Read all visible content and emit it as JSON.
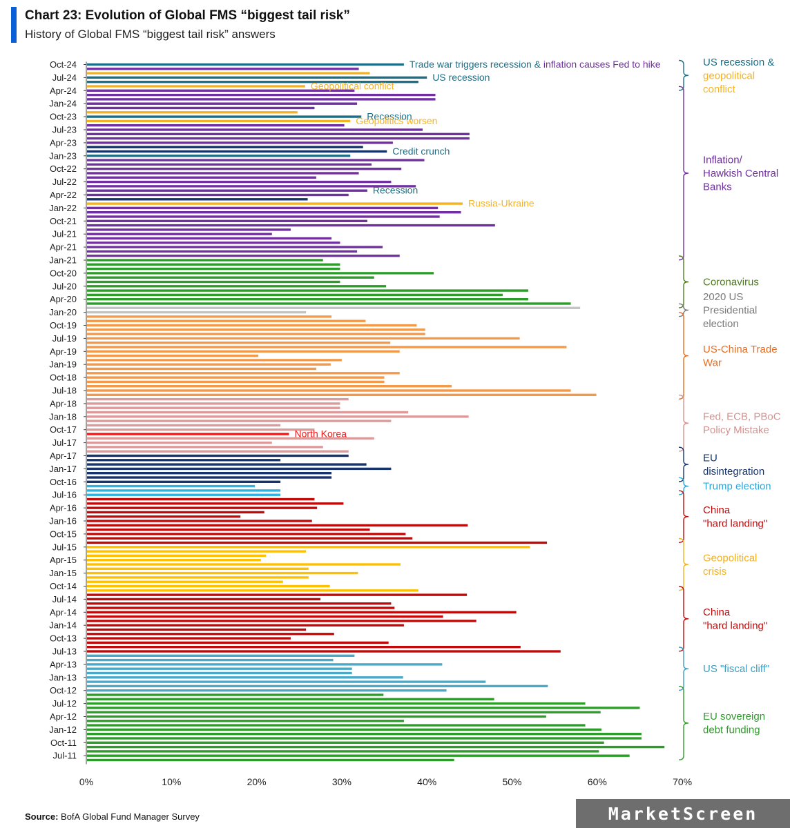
{
  "title": "Chart 23: Evolution of Global FMS “biggest tail risk”",
  "subtitle": "History of Global FMS “biggest tail risk” answers",
  "source_label": "Source:",
  "source_text": "BofA Global Fund Manager Survey",
  "watermark": "MarketScreen",
  "colors": {
    "teal": "#1d6e85",
    "purple": "#7030a0",
    "gold": "#f5b324",
    "navy": "#16336b",
    "green": "#2e9c2a",
    "grey": "#c4c4c4",
    "orange": "#f2994a",
    "pink": "#dc9a9a",
    "red": "#f01818",
    "cyan": "#2db2e4",
    "darkred": "#c00a0a",
    "yellow": "#ffc000",
    "steelblue": "#4ba9c8",
    "label_teal": "#1d6e85",
    "label_green": "#4f7b22",
    "label_grey": "#7a7a7a",
    "label_orange": "#e86c1f",
    "label_pink": "#d6918f",
    "label_navy": "#16336b",
    "label_cyan": "#2ea7d8",
    "label_red": "#c00a0a",
    "label_gold": "#f2b21f",
    "label_steel": "#3d9dbf",
    "label_green2": "#2e9c2a",
    "label_purple": "#7030a0",
    "label_yellow": "#f5b324"
  },
  "chart_data": {
    "type": "bar",
    "orientation": "horizontal",
    "title": "Chart 23: Evolution of Global FMS “biggest tail risk”",
    "xlim": [
      0,
      70
    ],
    "xticks": [
      "0%",
      "10%",
      "20%",
      "30%",
      "40%",
      "50%",
      "60%",
      "70%"
    ],
    "ytick_labels": [
      "Oct-24",
      "Jul-24",
      "Apr-24",
      "Jan-24",
      "Oct-23",
      "Jul-23",
      "Apr-23",
      "Jan-23",
      "Oct-22",
      "Jul-22",
      "Apr-22",
      "Jan-22",
      "Oct-21",
      "Jul-21",
      "Apr-21",
      "Jan-21",
      "Oct-20",
      "Jul-20",
      "Apr-20",
      "Jan-20",
      "Oct-19",
      "Jul-19",
      "Apr-19",
      "Jan-19",
      "Oct-18",
      "Jul-18",
      "Apr-18",
      "Jan-18",
      "Oct-17",
      "Jul-17",
      "Apr-17",
      "Jan-17",
      "Oct-16",
      "Jul-16",
      "Apr-16",
      "Jan-16",
      "Oct-15",
      "Jul-15",
      "Apr-15",
      "Jan-15",
      "Oct-14",
      "Jul-14",
      "Apr-14",
      "Jan-14",
      "Oct-13",
      "Jul-13",
      "Apr-13",
      "Jan-13",
      "Oct-12",
      "Jul-12",
      "Apr-12",
      "Jan-12",
      "Oct-11",
      "Jul-11"
    ],
    "bars": [
      {
        "value": 37.3,
        "color": "teal"
      },
      {
        "value": 32.0,
        "color": "purple"
      },
      {
        "value": 33.3,
        "color": "gold"
      },
      {
        "value": 40.0,
        "color": "teal"
      },
      {
        "value": 39.0,
        "color": "teal"
      },
      {
        "value": 25.7,
        "color": "gold"
      },
      {
        "value": 31.5,
        "color": "purple"
      },
      {
        "value": 41.0,
        "color": "purple"
      },
      {
        "value": 41.0,
        "color": "purple"
      },
      {
        "value": 31.8,
        "color": "purple"
      },
      {
        "value": 26.8,
        "color": "purple"
      },
      {
        "value": 24.8,
        "color": "gold"
      },
      {
        "value": 32.3,
        "color": "teal"
      },
      {
        "value": 31.0,
        "color": "gold"
      },
      {
        "value": 30.3,
        "color": "purple"
      },
      {
        "value": 39.5,
        "color": "purple"
      },
      {
        "value": 45.0,
        "color": "purple"
      },
      {
        "value": 45.0,
        "color": "purple"
      },
      {
        "value": 36.0,
        "color": "purple"
      },
      {
        "value": 32.5,
        "color": "navy"
      },
      {
        "value": 35.3,
        "color": "navy"
      },
      {
        "value": 31.0,
        "color": "teal"
      },
      {
        "value": 39.7,
        "color": "purple"
      },
      {
        "value": 33.5,
        "color": "purple"
      },
      {
        "value": 37.0,
        "color": "purple"
      },
      {
        "value": 32.0,
        "color": "purple"
      },
      {
        "value": 27.0,
        "color": "purple"
      },
      {
        "value": 35.8,
        "color": "purple"
      },
      {
        "value": 38.7,
        "color": "purple"
      },
      {
        "value": 33.0,
        "color": "purple"
      },
      {
        "value": 30.8,
        "color": "purple"
      },
      {
        "value": 26.0,
        "color": "navy"
      },
      {
        "value": 44.2,
        "color": "gold"
      },
      {
        "value": 41.3,
        "color": "purple"
      },
      {
        "value": 44.0,
        "color": "purple"
      },
      {
        "value": 41.5,
        "color": "purple"
      },
      {
        "value": 33.0,
        "color": "purple"
      },
      {
        "value": 48.0,
        "color": "purple"
      },
      {
        "value": 24.0,
        "color": "purple"
      },
      {
        "value": 21.8,
        "color": "purple"
      },
      {
        "value": 28.8,
        "color": "purple"
      },
      {
        "value": 29.8,
        "color": "purple"
      },
      {
        "value": 34.8,
        "color": "purple"
      },
      {
        "value": 31.8,
        "color": "purple"
      },
      {
        "value": 36.8,
        "color": "purple"
      },
      {
        "value": 27.8,
        "color": "green"
      },
      {
        "value": 29.8,
        "color": "green"
      },
      {
        "value": 29.8,
        "color": "green"
      },
      {
        "value": 40.8,
        "color": "green"
      },
      {
        "value": 33.8,
        "color": "green"
      },
      {
        "value": 29.8,
        "color": "green"
      },
      {
        "value": 35.2,
        "color": "green"
      },
      {
        "value": 51.9,
        "color": "green"
      },
      {
        "value": 48.9,
        "color": "green"
      },
      {
        "value": 51.9,
        "color": "green"
      },
      {
        "value": 56.9,
        "color": "green"
      },
      {
        "value": 58.0,
        "color": "grey"
      },
      {
        "value": 25.8,
        "color": "grey"
      },
      {
        "value": 28.8,
        "color": "orange"
      },
      {
        "value": 32.8,
        "color": "orange"
      },
      {
        "value": 38.8,
        "color": "orange"
      },
      {
        "value": 39.8,
        "color": "orange"
      },
      {
        "value": 39.8,
        "color": "orange"
      },
      {
        "value": 50.9,
        "color": "orange"
      },
      {
        "value": 35.7,
        "color": "orange"
      },
      {
        "value": 56.4,
        "color": "orange"
      },
      {
        "value": 36.8,
        "color": "orange"
      },
      {
        "value": 20.2,
        "color": "orange"
      },
      {
        "value": 30.0,
        "color": "orange"
      },
      {
        "value": 28.7,
        "color": "orange"
      },
      {
        "value": 27.0,
        "color": "orange"
      },
      {
        "value": 36.8,
        "color": "orange"
      },
      {
        "value": 35.0,
        "color": "orange"
      },
      {
        "value": 35.0,
        "color": "orange"
      },
      {
        "value": 42.9,
        "color": "orange"
      },
      {
        "value": 56.9,
        "color": "orange"
      },
      {
        "value": 59.9,
        "color": "orange"
      },
      {
        "value": 30.8,
        "color": "pink"
      },
      {
        "value": 29.8,
        "color": "pink"
      },
      {
        "value": 29.8,
        "color": "pink"
      },
      {
        "value": 37.8,
        "color": "pink"
      },
      {
        "value": 44.9,
        "color": "pink"
      },
      {
        "value": 35.8,
        "color": "pink"
      },
      {
        "value": 22.8,
        "color": "pink"
      },
      {
        "value": 26.8,
        "color": "pink"
      },
      {
        "value": 23.8,
        "color": "red"
      },
      {
        "value": 33.8,
        "color": "pink"
      },
      {
        "value": 21.8,
        "color": "pink"
      },
      {
        "value": 27.8,
        "color": "pink"
      },
      {
        "value": 30.8,
        "color": "pink"
      },
      {
        "value": 30.8,
        "color": "navy"
      },
      {
        "value": 22.8,
        "color": "navy"
      },
      {
        "value": 32.9,
        "color": "navy"
      },
      {
        "value": 35.8,
        "color": "navy"
      },
      {
        "value": 28.8,
        "color": "navy"
      },
      {
        "value": 28.8,
        "color": "navy"
      },
      {
        "value": 22.8,
        "color": "navy"
      },
      {
        "value": 19.8,
        "color": "cyan"
      },
      {
        "value": 22.8,
        "color": "cyan"
      },
      {
        "value": 22.8,
        "color": "cyan"
      },
      {
        "value": 26.8,
        "color": "darkred"
      },
      {
        "value": 30.2,
        "color": "darkred"
      },
      {
        "value": 27.1,
        "color": "darkred"
      },
      {
        "value": 20.9,
        "color": "darkred"
      },
      {
        "value": 18.1,
        "color": "darkred"
      },
      {
        "value": 26.5,
        "color": "darkred"
      },
      {
        "value": 44.8,
        "color": "darkred"
      },
      {
        "value": 33.3,
        "color": "darkred"
      },
      {
        "value": 37.5,
        "color": "darkred"
      },
      {
        "value": 38.3,
        "color": "darkred"
      },
      {
        "value": 54.1,
        "color": "darkred"
      },
      {
        "value": 52.1,
        "color": "yellow"
      },
      {
        "value": 25.8,
        "color": "yellow"
      },
      {
        "value": 21.1,
        "color": "yellow"
      },
      {
        "value": 20.5,
        "color": "yellow"
      },
      {
        "value": 36.9,
        "color": "yellow"
      },
      {
        "value": 26.1,
        "color": "yellow"
      },
      {
        "value": 31.9,
        "color": "yellow"
      },
      {
        "value": 26.1,
        "color": "yellow"
      },
      {
        "value": 23.1,
        "color": "yellow"
      },
      {
        "value": 28.6,
        "color": "yellow"
      },
      {
        "value": 39.0,
        "color": "yellow"
      },
      {
        "value": 44.7,
        "color": "darkred"
      },
      {
        "value": 27.5,
        "color": "darkred"
      },
      {
        "value": 35.8,
        "color": "darkred"
      },
      {
        "value": 36.2,
        "color": "darkred"
      },
      {
        "value": 50.5,
        "color": "darkred"
      },
      {
        "value": 41.9,
        "color": "darkred"
      },
      {
        "value": 45.8,
        "color": "darkred"
      },
      {
        "value": 37.3,
        "color": "darkred"
      },
      {
        "value": 25.8,
        "color": "darkred"
      },
      {
        "value": 29.1,
        "color": "darkred"
      },
      {
        "value": 24.0,
        "color": "darkred"
      },
      {
        "value": 35.5,
        "color": "darkred"
      },
      {
        "value": 51.0,
        "color": "darkred"
      },
      {
        "value": 55.7,
        "color": "darkred"
      },
      {
        "value": 31.5,
        "color": "steelblue"
      },
      {
        "value": 29.0,
        "color": "steelblue"
      },
      {
        "value": 41.8,
        "color": "steelblue"
      },
      {
        "value": 31.2,
        "color": "steelblue"
      },
      {
        "value": 31.2,
        "color": "steelblue"
      },
      {
        "value": 37.2,
        "color": "steelblue"
      },
      {
        "value": 46.9,
        "color": "steelblue"
      },
      {
        "value": 54.2,
        "color": "steelblue"
      },
      {
        "value": 42.3,
        "color": "steelblue"
      },
      {
        "value": 34.9,
        "color": "green"
      },
      {
        "value": 47.9,
        "color": "green"
      },
      {
        "value": 58.6,
        "color": "green"
      },
      {
        "value": 65.0,
        "color": "green"
      },
      {
        "value": 60.4,
        "color": "green"
      },
      {
        "value": 54.0,
        "color": "green"
      },
      {
        "value": 37.3,
        "color": "green"
      },
      {
        "value": 58.6,
        "color": "green"
      },
      {
        "value": 60.5,
        "color": "green"
      },
      {
        "value": 65.2,
        "color": "green"
      },
      {
        "value": 65.2,
        "color": "green"
      },
      {
        "value": 60.8,
        "color": "green"
      },
      {
        "value": 67.9,
        "color": "green"
      },
      {
        "value": 60.2,
        "color": "green"
      },
      {
        "value": 63.8,
        "color": "green"
      },
      {
        "value": 43.2,
        "color": "green"
      }
    ],
    "annotations": [
      {
        "segments": [
          {
            "text": "Trade war triggers recession & ",
            "color": "teal"
          },
          {
            "text": "inflation causes Fed to hike",
            "color": "purple"
          }
        ],
        "bar": 0
      },
      {
        "segments": [
          {
            "text": "US recession",
            "color": "teal"
          }
        ],
        "bar": 3
      },
      {
        "segments": [
          {
            "text": "Geopolitical conflict",
            "color": "gold"
          }
        ],
        "bar": 5
      },
      {
        "segments": [
          {
            "text": "Recession",
            "color": "teal"
          }
        ],
        "bar": 12
      },
      {
        "segments": [
          {
            "text": "Geopolitics worsen",
            "color": "gold"
          }
        ],
        "bar": 13
      },
      {
        "segments": [
          {
            "text": "Credit crunch",
            "color": "teal"
          }
        ],
        "bar": 20
      },
      {
        "segments": [
          {
            "text": "Recession",
            "color": "teal"
          }
        ],
        "bar": 29
      },
      {
        "segments": [
          {
            "text": "Russia-Ukraine",
            "color": "gold"
          }
        ],
        "bar": 32
      },
      {
        "segments": [
          {
            "text": "North Korea",
            "color": "red"
          }
        ],
        "bar": 85
      }
    ],
    "legend_groups": [
      {
        "lines": [
          {
            "text": "US recession &",
            "color": "label_teal"
          },
          {
            "text": "geopolitical",
            "color": "label_yellow"
          },
          {
            "text": "conflict",
            "color": "label_yellow"
          }
        ],
        "from_bar": 0,
        "to_bar": 5,
        "bracket_color": "teal"
      },
      {
        "lines": [
          {
            "text": "Inflation/",
            "color": "label_purple"
          },
          {
            "text": "Hawkish Central",
            "color": "label_purple"
          },
          {
            "text": "Banks",
            "color": "label_purple"
          }
        ],
        "from_bar": 6,
        "to_bar": 44,
        "bracket_color": "purple"
      },
      {
        "lines": [
          {
            "text": "Coronavirus",
            "color": "label_green"
          }
        ],
        "from_bar": 45,
        "to_bar": 55,
        "bracket_color": "label_green"
      },
      {
        "lines": [
          {
            "text": "2020 US",
            "color": "label_grey"
          },
          {
            "text": "Presidential",
            "color": "label_grey"
          },
          {
            "text": "election",
            "color": "label_grey"
          }
        ],
        "from_bar": 56,
        "to_bar": 57,
        "bracket_color": "label_grey"
      },
      {
        "lines": [
          {
            "text": "US-China Trade",
            "color": "label_orange"
          },
          {
            "text": "War",
            "color": "label_orange"
          }
        ],
        "from_bar": 58,
        "to_bar": 76,
        "bracket_color": "label_orange"
      },
      {
        "lines": [
          {
            "text": "Fed, ECB, PBoC",
            "color": "label_pink"
          },
          {
            "text": "Policy Mistake",
            "color": "label_pink"
          }
        ],
        "from_bar": 77,
        "to_bar": 88,
        "bracket_color": "label_pink"
      },
      {
        "lines": [
          {
            "text": "EU",
            "color": "label_navy"
          },
          {
            "text": "disintegration",
            "color": "label_navy"
          }
        ],
        "from_bar": 89,
        "to_bar": 95,
        "bracket_color": "label_navy"
      },
      {
        "lines": [
          {
            "text": "Trump election",
            "color": "label_cyan"
          }
        ],
        "from_bar": 96,
        "to_bar": 98,
        "bracket_color": "label_cyan"
      },
      {
        "lines": [
          {
            "text": "China",
            "color": "label_red"
          },
          {
            "text": "\"hard landing\"",
            "color": "label_red"
          }
        ],
        "from_bar": 99,
        "to_bar": 109,
        "bracket_color": "label_red"
      },
      {
        "lines": [
          {
            "text": "Geopolitical",
            "color": "label_gold"
          },
          {
            "text": "crisis",
            "color": "label_gold"
          }
        ],
        "from_bar": 110,
        "to_bar": 120,
        "bracket_color": "label_gold"
      },
      {
        "lines": [
          {
            "text": "China",
            "color": "label_red"
          },
          {
            "text": "\"hard landing\"",
            "color": "label_red"
          }
        ],
        "from_bar": 121,
        "to_bar": 134,
        "bracket_color": "label_red"
      },
      {
        "lines": [
          {
            "text": "US \"fiscal cliff\"",
            "color": "label_steel"
          }
        ],
        "from_bar": 135,
        "to_bar": 143,
        "bracket_color": "label_steel"
      },
      {
        "lines": [
          {
            "text": "EU sovereign",
            "color": "label_green2"
          },
          {
            "text": "debt funding",
            "color": "label_green2"
          }
        ],
        "from_bar": 144,
        "to_bar": 159,
        "bracket_color": "label_green2"
      }
    ]
  }
}
